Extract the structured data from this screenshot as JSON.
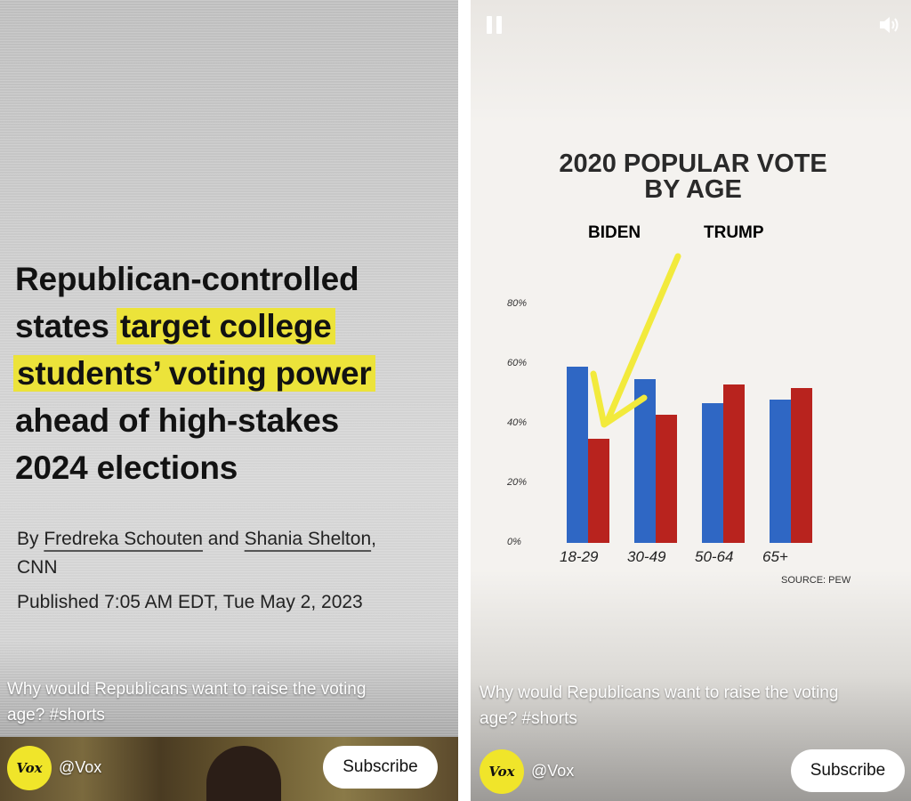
{
  "left_panel": {
    "headline": {
      "line1": "Republican-controlled",
      "line2_plain": "states ",
      "line2_highlight": "target college",
      "line3_highlight": "students’ voting power",
      "line4": "ahead of high-stakes",
      "line5": "2024 elections"
    },
    "byline": {
      "prefix": "By ",
      "author1": "Fredreka Schouten",
      "connector": " and ",
      "author2": "Shania Shelton",
      "suffix": ",",
      "outlet": "CNN"
    },
    "published": "Published 7:05 AM EDT, Tue May 2, 2023",
    "video": {
      "caption_line1": "Why would Republicans want to raise the voting",
      "caption_line2": "age? #shorts",
      "logo_text": "Vox",
      "channel": "@Vox",
      "subscribe_label": "Subscribe"
    }
  },
  "right_panel": {
    "icons": {
      "pause": "pause-icon",
      "volume": "speaker-icon"
    },
    "video": {
      "caption_line1": "Why would Republicans want to raise the voting",
      "caption_line2": "age? #shorts",
      "logo_text": "Vox",
      "channel": "@Vox",
      "subscribe_label": "Subscribe"
    }
  },
  "colors": {
    "highlight": "#ece33a",
    "biden": "#2f67c4",
    "trump": "#b8231e",
    "arrow": "#f2ea3c",
    "vox_yellow": "#f0e52a"
  },
  "chart_data": {
    "type": "bar",
    "title_line1": "2020 POPULAR VOTE",
    "title_line2": "BY AGE",
    "categories": [
      "18-29",
      "30-49",
      "50-64",
      "65+"
    ],
    "series": [
      {
        "name": "BIDEN",
        "color": "#2f67c4",
        "values": [
          59,
          55,
          47,
          48
        ]
      },
      {
        "name": "TRUMP",
        "color": "#b8231e",
        "values": [
          35,
          43,
          53,
          52
        ]
      }
    ],
    "ylim": [
      0,
      80
    ],
    "y_ticks": [
      "0%",
      "20%",
      "40%",
      "60%",
      "80%"
    ],
    "y_tick_values": [
      0,
      20,
      40,
      60,
      80
    ],
    "legend_placement": "top",
    "grid": false,
    "source": "SOURCE: PEW",
    "annotation": "yellow arrow pointing to 18-29 TRUMP bar"
  }
}
